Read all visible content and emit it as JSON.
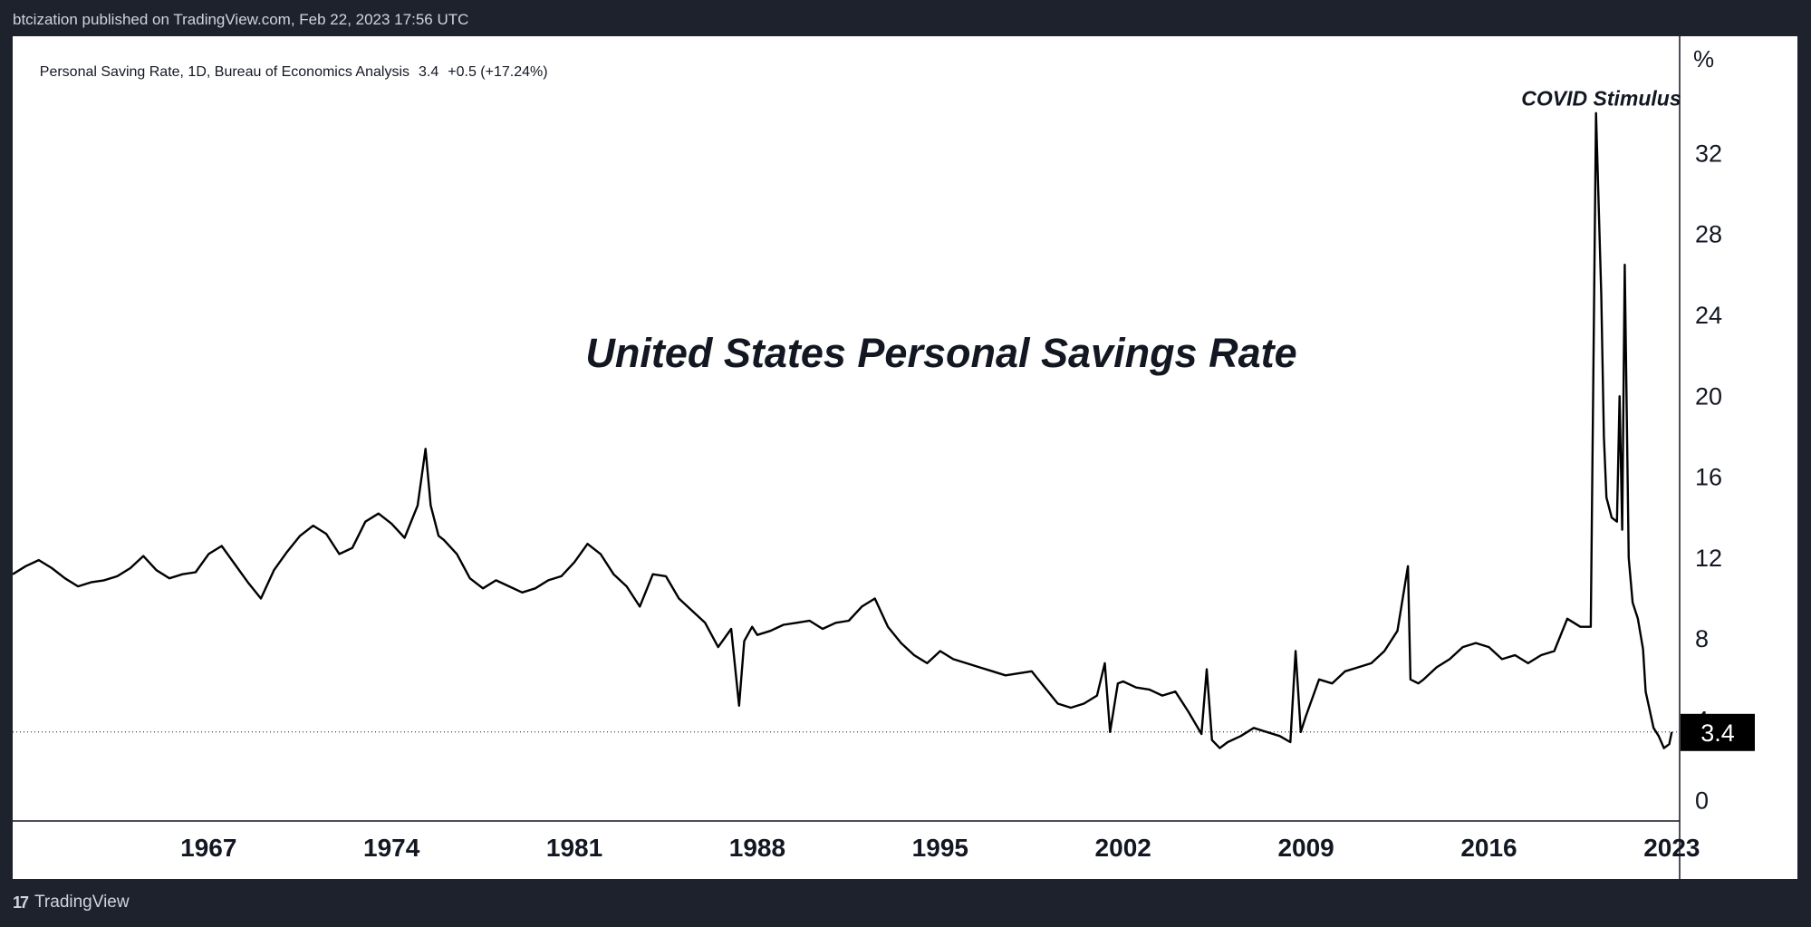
{
  "header": {
    "published_text": "btcization published on TradingView.com, Feb 22, 2023 17:56 UTC"
  },
  "legend": {
    "symbol": "Personal Saving Rate, 1D, Bureau of Economics Analysis",
    "last_value": "3.4",
    "change": "+0.5 (+17.24%)"
  },
  "footer": {
    "brand": "TradingView",
    "logo_glyph": "17"
  },
  "colors": {
    "background_dark": "#1e222d",
    "chart_background": "#ffffff",
    "line": "#000000",
    "price_label_bg": "#000000"
  },
  "chart_data": {
    "type": "line",
    "title": "United States Personal Savings Rate",
    "annotation": {
      "text": "COVID Stimulus",
      "x": 2020.3,
      "y": 33.8
    },
    "y_unit_label": "%",
    "xlim": [
      1959.5,
      2023.3
    ],
    "ylim": [
      -1,
      37.8
    ],
    "x_ticks": [
      1967,
      1974,
      1981,
      1988,
      1995,
      2002,
      2009,
      2016,
      2023
    ],
    "x_tick_labels": [
      "1967",
      "1974",
      "1981",
      "1988",
      "1995",
      "2002",
      "2009",
      "2016",
      "2023"
    ],
    "y_ticks": [
      0,
      4,
      8,
      12,
      16,
      20,
      24,
      28,
      32
    ],
    "y_tick_labels": [
      "0",
      "4",
      "8",
      "12",
      "16",
      "20",
      "24",
      "28",
      "32"
    ],
    "last_price": 3.4,
    "last_price_label": "3.4",
    "grid": false,
    "series": [
      {
        "x": [
          1959.5,
          1960.0,
          1960.5,
          1961.0,
          1961.5,
          1962.0,
          1962.5,
          1963.0,
          1963.5,
          1964.0,
          1964.5,
          1965.0,
          1965.5,
          1966.0,
          1966.5,
          1967.0,
          1967.5,
          1968.0,
          1968.5,
          1969.0,
          1969.5,
          1970.0,
          1970.5,
          1971.0,
          1971.5,
          1972.0,
          1972.5,
          1973.0,
          1973.5,
          1974.0,
          1974.5,
          1975.0,
          1975.3,
          1975.5,
          1975.8,
          1976.0,
          1976.5,
          1977.0,
          1977.5,
          1978.0,
          1978.5,
          1979.0,
          1979.5,
          1980.0,
          1980.5,
          1981.0,
          1981.5,
          1982.0,
          1982.5,
          1983.0,
          1983.5,
          1984.0,
          1984.5,
          1985.0,
          1985.5,
          1986.0,
          1986.5,
          1987.0,
          1987.3,
          1987.5,
          1987.8,
          1988.0,
          1988.5,
          1989.0,
          1989.5,
          1990.0,
          1990.5,
          1991.0,
          1991.5,
          1992.0,
          1992.5,
          1993.0,
          1993.5,
          1994.0,
          1994.5,
          1995.0,
          1995.5,
          1996.0,
          1996.5,
          1997.0,
          1997.5,
          1998.0,
          1998.5,
          1999.0,
          1999.5,
          2000.0,
          2000.5,
          2001.0,
          2001.3,
          2001.5,
          2001.8,
          2002.0,
          2002.5,
          2003.0,
          2003.5,
          2004.0,
          2004.5,
          2005.0,
          2005.2,
          2005.4,
          2005.7,
          2006.0,
          2006.5,
          2007.0,
          2007.5,
          2008.0,
          2008.4,
          2008.6,
          2008.8,
          2009.0,
          2009.5,
          2010.0,
          2010.5,
          2011.0,
          2011.5,
          2012.0,
          2012.5,
          2012.9,
          2013.0,
          2013.3,
          2013.5,
          2014.0,
          2014.5,
          2015.0,
          2015.5,
          2016.0,
          2016.5,
          2017.0,
          2017.5,
          2018.0,
          2018.5,
          2019.0,
          2019.5,
          2019.9,
          2020.1,
          2020.3,
          2020.4,
          2020.5,
          2020.7,
          2020.9,
          2021.0,
          2021.1,
          2021.2,
          2021.35,
          2021.5,
          2021.7,
          2021.9,
          2022.0,
          2022.3,
          2022.5,
          2022.7,
          2022.9,
          2023.0
        ],
        "y": [
          11.2,
          11.6,
          11.9,
          11.5,
          11.0,
          10.6,
          10.8,
          10.9,
          11.1,
          11.5,
          12.1,
          11.4,
          11.0,
          11.2,
          11.3,
          12.2,
          12.6,
          11.7,
          10.8,
          10.0,
          11.4,
          12.3,
          13.1,
          13.6,
          13.2,
          12.2,
          12.5,
          13.8,
          14.2,
          13.7,
          13.0,
          14.6,
          17.4,
          14.6,
          13.1,
          12.9,
          12.2,
          11.0,
          10.5,
          10.9,
          10.6,
          10.3,
          10.5,
          10.9,
          11.1,
          11.8,
          12.7,
          12.2,
          11.2,
          10.6,
          9.6,
          11.2,
          11.1,
          10.0,
          9.4,
          8.8,
          7.6,
          8.5,
          4.7,
          7.9,
          8.6,
          8.2,
          8.4,
          8.7,
          8.8,
          8.9,
          8.5,
          8.8,
          8.9,
          9.6,
          10.0,
          8.6,
          7.8,
          7.2,
          6.8,
          7.4,
          7.0,
          6.8,
          6.6,
          6.4,
          6.2,
          6.3,
          6.4,
          5.6,
          4.8,
          4.6,
          4.8,
          5.2,
          6.8,
          3.4,
          5.8,
          5.9,
          5.6,
          5.5,
          5.2,
          5.4,
          4.4,
          3.3,
          6.5,
          3.0,
          2.6,
          2.9,
          3.2,
          3.6,
          3.4,
          3.2,
          2.9,
          7.4,
          3.4,
          4.2,
          6.0,
          5.8,
          6.4,
          6.6,
          6.8,
          7.4,
          8.4,
          11.6,
          6.0,
          5.8,
          6.0,
          6.6,
          7.0,
          7.6,
          7.8,
          7.6,
          7.0,
          7.2,
          6.8,
          7.2,
          7.4,
          9.0,
          8.6,
          8.6,
          34.0,
          25.0,
          18.0,
          15.0,
          14.0,
          13.8,
          20.0,
          13.4,
          26.5,
          12.0,
          9.8,
          9.0,
          7.5,
          5.4,
          3.6,
          3.2,
          2.6,
          2.8,
          3.4
        ]
      }
    ]
  }
}
